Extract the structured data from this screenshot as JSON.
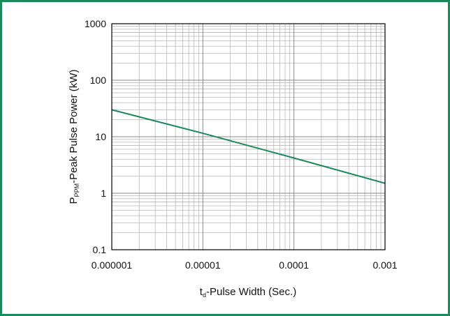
{
  "chart_data": {
    "type": "line",
    "x_scale": "log",
    "y_scale": "log",
    "xlim": [
      1e-06,
      0.001
    ],
    "ylim": [
      0.1,
      1000
    ],
    "x_tick_labels": [
      "0.000001",
      "0.00001",
      "0.0001",
      "0.001"
    ],
    "y_tick_labels": [
      "0.1",
      "1",
      "10",
      "100",
      "1000"
    ],
    "xlabel": {
      "main": "t",
      "sub": "d",
      "rest": "-Pulse Width (Sec.)"
    },
    "ylabel": {
      "main": "P",
      "sub": "PPM",
      "rest": "-Peak Pulse Power (kW)"
    },
    "grid": true,
    "series": [
      {
        "x": [
          1e-06,
          1e-05,
          0.0001,
          0.001
        ],
        "y": [
          30,
          11.5,
          4.2,
          1.5
        ]
      }
    ],
    "colors": {
      "line": "#1a8a5a",
      "grid": "#b8b8b8",
      "axis": "#000000",
      "border": "#1a8a5a"
    }
  }
}
